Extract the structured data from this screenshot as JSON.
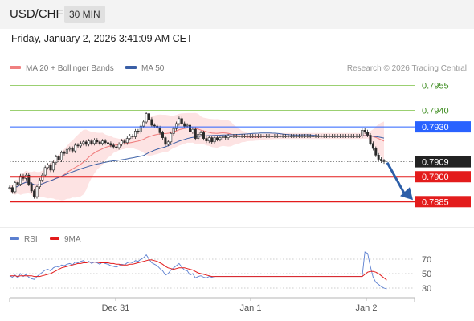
{
  "header": {
    "symbol": "USD/CHF",
    "interval": "30 MIN"
  },
  "datetime": "Friday, January 2, 2026 3:41:09 AM CET",
  "legend": {
    "ma20": "MA 20 + Bollinger Bands",
    "ma50": "MA 50",
    "rsi": "RSI",
    "ma9": "9MA"
  },
  "research": "Research © 2026 Trading Central",
  "colors": {
    "ma20": "#f08080",
    "ma50": "#3a5fa6",
    "bands": "#fde3e3",
    "resistance": "#7ac142",
    "pivot": "#2962ff",
    "support": "#e31c1c",
    "current": "#222222",
    "arrow": "#2c5ea8",
    "rsi": "#5b7fd0",
    "rsi_ma": "#e31c1c"
  },
  "chart_data": [
    {
      "type": "candlestick",
      "ylim": [
        0.7875,
        0.796
      ],
      "x_ticks": [
        "Dec 31",
        "Jan 1",
        "Jan 2"
      ],
      "levels": [
        {
          "label": "0.7955",
          "value": 0.7955,
          "kind": "resistance"
        },
        {
          "label": "0.7940",
          "value": 0.794,
          "kind": "resistance"
        },
        {
          "label": "0.7930",
          "value": 0.793,
          "kind": "pivot"
        },
        {
          "label": "0.7909",
          "value": 0.7909,
          "kind": "current"
        },
        {
          "label": "0.7900",
          "value": 0.79,
          "kind": "support"
        },
        {
          "label": "0.7885",
          "value": 0.7885,
          "kind": "support"
        }
      ],
      "close": [
        0.78935,
        0.7891,
        0.78965,
        0.78955,
        0.79005,
        0.7899,
        0.7901,
        0.78955,
        0.78915,
        0.7888,
        0.7894,
        0.7898,
        0.7901,
        0.79055,
        0.7907,
        0.7904,
        0.79085,
        0.7912,
        0.791,
        0.79145,
        0.7914,
        0.79165,
        0.7917,
        0.79155,
        0.7919,
        0.79185,
        0.792,
        0.7921,
        0.79195,
        0.79215,
        0.792,
        0.7922,
        0.7921,
        0.792,
        0.79215,
        0.79205,
        0.792,
        0.7919,
        0.7918,
        0.79175,
        0.79195,
        0.79215,
        0.79205,
        0.7923,
        0.79245,
        0.7924,
        0.79275,
        0.7927,
        0.79305,
        0.7933,
        0.7938,
        0.79345,
        0.7931,
        0.79305,
        0.79295,
        0.79265,
        0.79235,
        0.79195,
        0.7921,
        0.7926,
        0.7929,
        0.7932,
        0.7935,
        0.7932,
        0.79305,
        0.7931,
        0.7927,
        0.79285,
        0.7923,
        0.79255,
        0.79265,
        0.7923,
        0.79215,
        0.79235,
        0.7921,
        0.79235,
        0.79225,
        0.79235,
        0.7924,
        0.79235,
        0.79245,
        0.79245,
        0.79245,
        0.79245,
        0.79245,
        0.79245,
        0.79245,
        0.79245,
        0.79245,
        0.79245,
        0.79245,
        0.79245,
        0.79245,
        0.79245,
        0.79245,
        0.79245,
        0.79245,
        0.79245,
        0.79245,
        0.79245,
        0.79245,
        0.79245,
        0.79245,
        0.79245,
        0.79245,
        0.79245,
        0.79245,
        0.79245,
        0.79245,
        0.79245,
        0.79245,
        0.79245,
        0.79245,
        0.79245,
        0.79245,
        0.79245,
        0.79245,
        0.79245,
        0.79245,
        0.79245,
        0.79245,
        0.79245,
        0.79245,
        0.79245,
        0.79245,
        0.79245,
        0.79245,
        0.79245,
        0.79245,
        0.7928,
        0.7927,
        0.7925,
        0.792,
        0.7917,
        0.7913,
        0.79105,
        0.79095,
        0.7909
      ]
    },
    {
      "type": "line",
      "series": [
        {
          "name": "RSI"
        },
        {
          "name": "9MA"
        }
      ],
      "ylim": [
        20,
        80
      ],
      "y_ticks": [
        70,
        50,
        30
      ],
      "rsi": [
        47,
        45,
        48,
        44,
        50,
        46,
        49,
        45,
        43,
        42,
        46,
        49,
        52,
        55,
        56,
        54,
        58,
        60,
        59,
        62,
        61,
        63,
        64,
        62,
        66,
        65,
        67,
        68,
        65,
        67,
        64,
        66,
        65,
        63,
        66,
        64,
        63,
        61,
        60,
        59,
        61,
        63,
        62,
        65,
        66,
        65,
        68,
        67,
        70,
        72,
        76,
        70,
        65,
        63,
        61,
        57,
        54,
        48,
        50,
        55,
        58,
        61,
        64,
        59,
        55,
        54,
        48,
        50,
        44,
        46,
        47,
        45,
        44,
        46,
        45,
        46,
        46,
        46,
        46,
        46,
        46,
        46,
        46,
        46,
        46,
        46,
        46,
        46,
        46,
        46,
        46,
        46,
        46,
        46,
        46,
        46,
        46,
        46,
        46,
        46,
        46,
        46,
        46,
        46,
        46,
        46,
        46,
        46,
        46,
        46,
        46,
        46,
        46,
        46,
        46,
        46,
        46,
        46,
        46,
        46,
        46,
        46,
        46,
        46,
        46,
        46,
        46,
        46,
        46,
        46,
        80,
        78,
        60,
        45,
        38,
        35,
        32,
        30,
        29
      ],
      "ma": [
        47,
        47,
        47,
        46,
        47,
        47,
        47,
        47,
        47,
        46,
        46,
        46,
        47,
        48,
        49,
        50,
        52,
        54,
        56,
        58,
        59,
        60,
        61,
        62,
        63,
        64,
        64,
        65,
        65,
        66,
        66,
        66,
        66,
        65,
        65,
        65,
        65,
        64,
        64,
        63,
        63,
        62,
        62,
        62,
        63,
        63,
        64,
        65,
        66,
        67,
        68,
        69,
        69,
        68,
        67,
        65,
        63,
        60,
        58,
        57,
        56,
        57,
        58,
        58,
        58,
        57,
        56,
        55,
        53,
        51,
        50,
        49,
        48,
        47,
        46,
        46,
        46,
        46,
        46,
        46,
        46,
        46,
        46,
        46,
        46,
        46,
        46,
        46,
        46,
        46,
        46,
        46,
        46,
        46,
        46,
        46,
        46,
        46,
        46,
        46,
        46,
        46,
        46,
        46,
        46,
        46,
        46,
        46,
        46,
        46,
        46,
        46,
        46,
        46,
        46,
        46,
        46,
        46,
        46,
        46,
        46,
        46,
        46,
        46,
        46,
        46,
        46,
        46,
        46,
        46,
        49,
        52,
        53,
        53,
        52,
        50,
        47,
        44,
        41
      ]
    }
  ]
}
